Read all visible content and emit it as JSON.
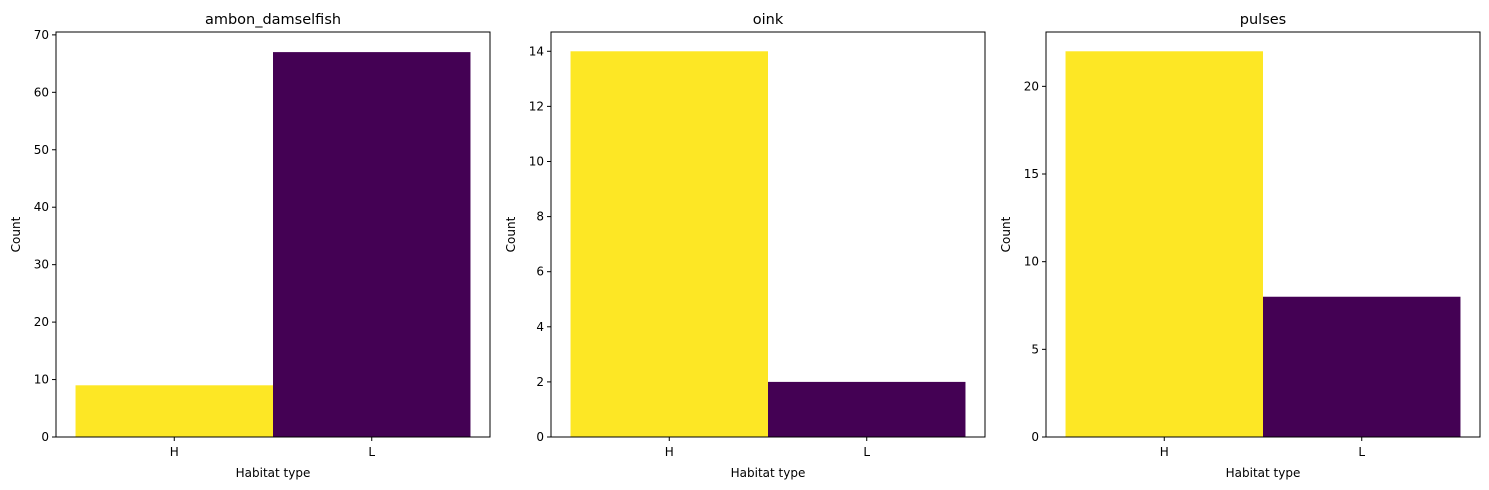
{
  "chart_data": [
    {
      "type": "bar",
      "title": "ambon_damselfish",
      "xlabel": "Habitat type",
      "ylabel": "Count",
      "categories": [
        "H",
        "L"
      ],
      "values": [
        9,
        67
      ],
      "colors": [
        "#fde725",
        "#440154"
      ],
      "ylim": [
        0,
        70.5
      ],
      "yticks": [
        0,
        10,
        20,
        30,
        40,
        50,
        60,
        70
      ],
      "grid": false,
      "legend": "none"
    },
    {
      "type": "bar",
      "title": "oink",
      "xlabel": "Habitat type",
      "ylabel": "Count",
      "categories": [
        "H",
        "L"
      ],
      "values": [
        14,
        2
      ],
      "colors": [
        "#fde725",
        "#440154"
      ],
      "ylim": [
        0,
        14.7
      ],
      "yticks": [
        0,
        2,
        4,
        6,
        8,
        10,
        12,
        14
      ],
      "grid": false,
      "legend": "none"
    },
    {
      "type": "bar",
      "title": "pulses",
      "xlabel": "Habitat type",
      "ylabel": "Count",
      "categories": [
        "H",
        "L"
      ],
      "values": [
        22,
        8
      ],
      "colors": [
        "#fde725",
        "#440154"
      ],
      "ylim": [
        0,
        23.1
      ],
      "yticks": [
        0,
        5,
        10,
        15,
        20
      ],
      "grid": false,
      "legend": "none"
    }
  ]
}
